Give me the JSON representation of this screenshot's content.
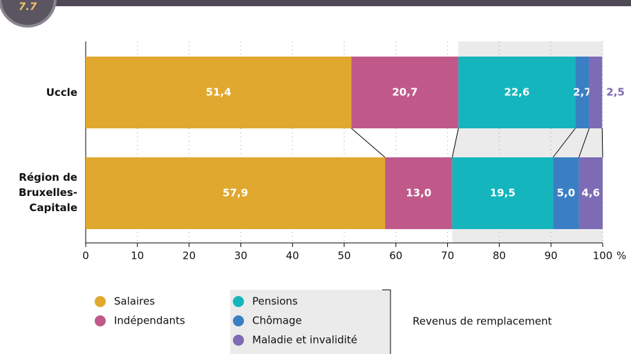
{
  "badge": "7.7",
  "chart_data": {
    "type": "stacked_barh",
    "categories": [
      "Uccle",
      "Région de Bruxelles-Capitale"
    ],
    "series": [
      {
        "name": "Salaires",
        "color": "#e0a82e",
        "values": [
          51.4,
          57.9
        ],
        "value_labels": [
          "51,4",
          "57,9"
        ]
      },
      {
        "name": "Indépendants",
        "color": "#c0598a",
        "values": [
          20.7,
          13.0
        ],
        "value_labels": [
          "20,7",
          "13,0"
        ]
      },
      {
        "name": "Pensions",
        "color": "#14b5bd",
        "values": [
          22.6,
          19.5
        ],
        "value_labels": [
          "22,6",
          "19,5"
        ]
      },
      {
        "name": "Chômage",
        "color": "#3a7fc4",
        "values": [
          2.7,
          5.0
        ],
        "value_labels": [
          "2,7",
          "5,0"
        ]
      },
      {
        "name": "Maladie et invalidité",
        "color": "#7e6bb5",
        "values": [
          2.5,
          4.6
        ],
        "value_labels": [
          "2,5",
          "4,6"
        ]
      }
    ],
    "xlim": [
      0,
      100
    ],
    "xticks": [
      0,
      10,
      20,
      30,
      40,
      50,
      60,
      70,
      80,
      90,
      100
    ],
    "x_unit": "%",
    "grid": true,
    "legend_group_label": "Revenus de remplacement"
  }
}
